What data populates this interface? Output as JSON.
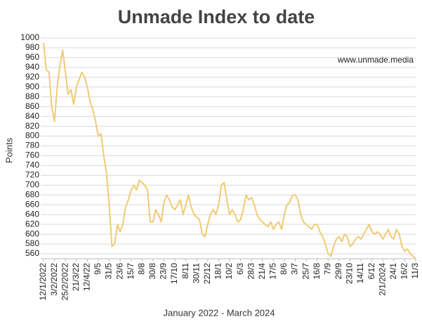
{
  "chart_data": {
    "type": "line",
    "title": "Unmade Index to date",
    "annotation": "www.unmade.media",
    "x_label": "January 2022 - March 2024",
    "y_label": "Points",
    "categories": [
      "12/1/2022",
      null,
      null,
      null,
      "3/2/2022",
      null,
      null,
      null,
      "25/2/2022",
      null,
      null,
      null,
      "21/3/22",
      null,
      null,
      null,
      "12/4/22",
      null,
      null,
      null,
      "9/5",
      null,
      null,
      null,
      "31/5",
      null,
      null,
      null,
      "23/6",
      null,
      null,
      null,
      "15/7",
      null,
      null,
      null,
      "8/8",
      null,
      null,
      null,
      "30/8",
      null,
      null,
      null,
      "23/9",
      null,
      null,
      null,
      "17/10",
      null,
      null,
      null,
      "8/11",
      null,
      null,
      null,
      "30/11",
      null,
      null,
      null,
      "22/12",
      null,
      null,
      null,
      "18/1",
      null,
      null,
      null,
      "10/2",
      null,
      null,
      null,
      "6/3",
      null,
      null,
      null,
      "28/3",
      null,
      null,
      null,
      "21/4",
      null,
      null,
      null,
      "17/5",
      null,
      null,
      null,
      "8/6",
      null,
      null,
      null,
      "3/7",
      null,
      null,
      null,
      "25/7",
      null,
      null,
      null,
      "16/8",
      null,
      null,
      null,
      "7/9",
      null,
      null,
      null,
      "29/9",
      null,
      null,
      null,
      "23/10",
      null,
      null,
      null,
      "14/11",
      null,
      null,
      null,
      "6/12",
      null,
      null,
      null,
      "2/1/2024",
      null,
      null,
      null,
      "24/1",
      null,
      null,
      null,
      "16/2",
      null,
      null,
      null,
      "11/3"
    ],
    "series": [
      {
        "name": "Unmade Index",
        "color": "#f0cb74",
        "values": [
          990,
          935,
          930,
          860,
          830,
          900,
          945,
          975,
          930,
          885,
          895,
          865,
          900,
          915,
          930,
          920,
          900,
          870,
          855,
          830,
          800,
          805,
          760,
          725,
          660,
          575,
          580,
          620,
          605,
          620,
          655,
          670,
          690,
          700,
          690,
          710,
          705,
          700,
          690,
          625,
          625,
          650,
          640,
          625,
          665,
          680,
          670,
          655,
          650,
          660,
          670,
          640,
          660,
          680,
          655,
          640,
          635,
          630,
          600,
          595,
          620,
          640,
          650,
          640,
          660,
          700,
          705,
          670,
          640,
          650,
          640,
          625,
          630,
          650,
          680,
          670,
          675,
          660,
          640,
          630,
          625,
          620,
          615,
          625,
          610,
          620,
          625,
          610,
          640,
          660,
          665,
          680,
          680,
          670,
          640,
          625,
          620,
          615,
          610,
          620,
          620,
          605,
          595,
          580,
          560,
          555,
          575,
          590,
          595,
          585,
          600,
          595,
          575,
          580,
          590,
          595,
          590,
          600,
          610,
          620,
          605,
          600,
          605,
          600,
          590,
          600,
          610,
          595,
          590,
          610,
          600,
          575,
          565,
          570,
          560,
          555,
          550
        ]
      }
    ],
    "ylim": [
      550,
      1000
    ],
    "yticks": [
      560,
      580,
      600,
      620,
      640,
      660,
      680,
      700,
      720,
      740,
      760,
      780,
      800,
      820,
      840,
      860,
      880,
      900,
      920,
      940,
      960,
      980,
      1000
    ],
    "grid": true
  }
}
